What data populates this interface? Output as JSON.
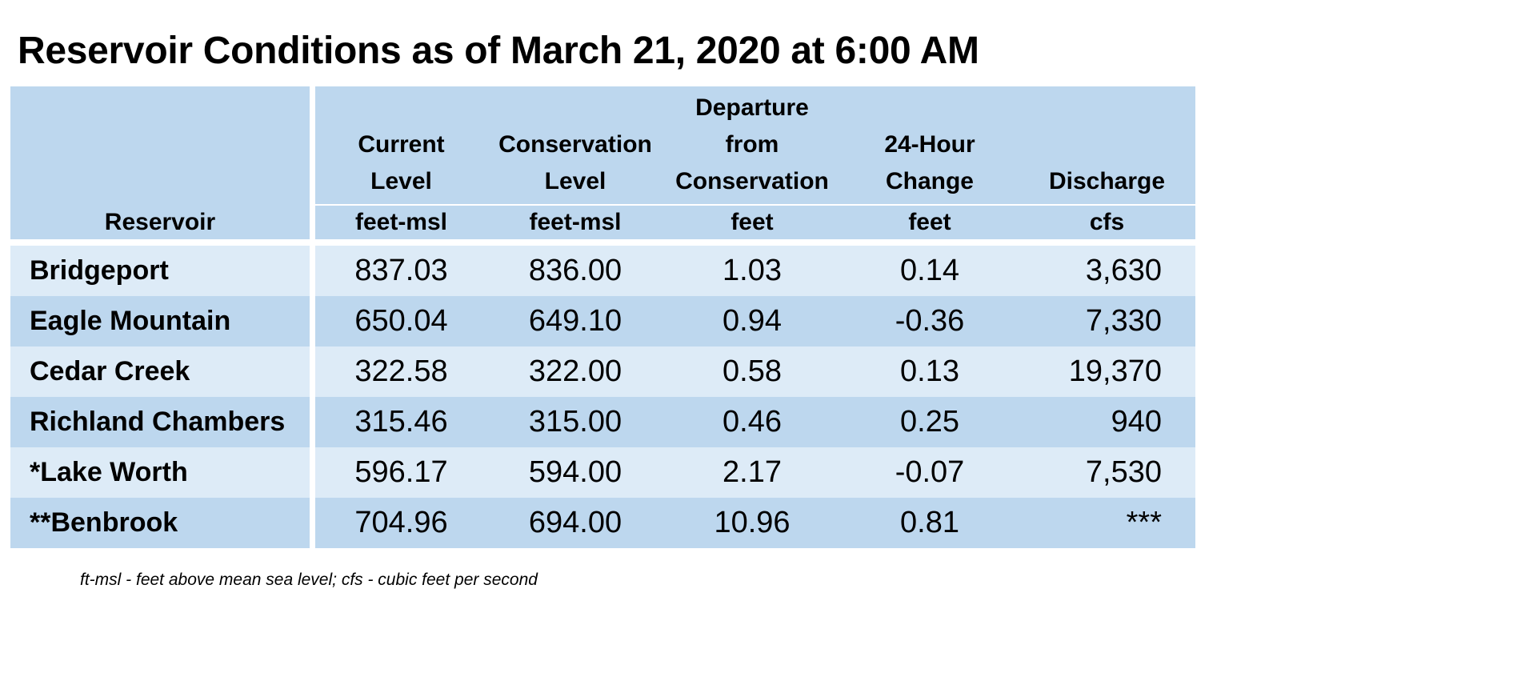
{
  "title": "Reservoir Conditions as of March 21, 2020 at 6:00 AM",
  "columns": [
    {
      "header_lines": [
        ""
      ],
      "unit": "Reservoir"
    },
    {
      "header_lines": [
        "Current",
        "Level"
      ],
      "unit": "feet-msl"
    },
    {
      "header_lines": [
        "Conservation",
        "Level"
      ],
      "unit": "feet-msl"
    },
    {
      "header_lines": [
        "Departure",
        "from",
        "Conservation"
      ],
      "unit": "feet"
    },
    {
      "header_lines": [
        "24-Hour",
        "Change"
      ],
      "unit": "feet"
    },
    {
      "header_lines": [
        "Discharge"
      ],
      "unit": "cfs"
    }
  ],
  "rows": [
    {
      "name": "Bridgeport",
      "current": "837.03",
      "conservation": "836.00",
      "departure": "1.03",
      "change": "0.14",
      "discharge": "3,630"
    },
    {
      "name": "Eagle Mountain",
      "current": "650.04",
      "conservation": "649.10",
      "departure": "0.94",
      "change": "-0.36",
      "discharge": "7,330"
    },
    {
      "name": "Cedar Creek",
      "current": "322.58",
      "conservation": "322.00",
      "departure": "0.58",
      "change": "0.13",
      "discharge": "19,370"
    },
    {
      "name": "Richland Chambers",
      "current": "315.46",
      "conservation": "315.00",
      "departure": "0.46",
      "change": "0.25",
      "discharge": "940"
    },
    {
      "name": "*Lake Worth",
      "current": "596.17",
      "conservation": "594.00",
      "departure": "2.17",
      "change": "-0.07",
      "discharge": "7,530"
    },
    {
      "name": "**Benbrook",
      "current": "704.96",
      "conservation": "694.00",
      "departure": "10.96",
      "change": "0.81",
      "discharge": "***"
    }
  ],
  "footnote": "ft-msl - feet above mean sea level; cfs - cubic feet per second",
  "colors": {
    "header_bg": "#bdd7ee",
    "row_light": "#ddebf7",
    "row_dark": "#bdd7ee"
  }
}
